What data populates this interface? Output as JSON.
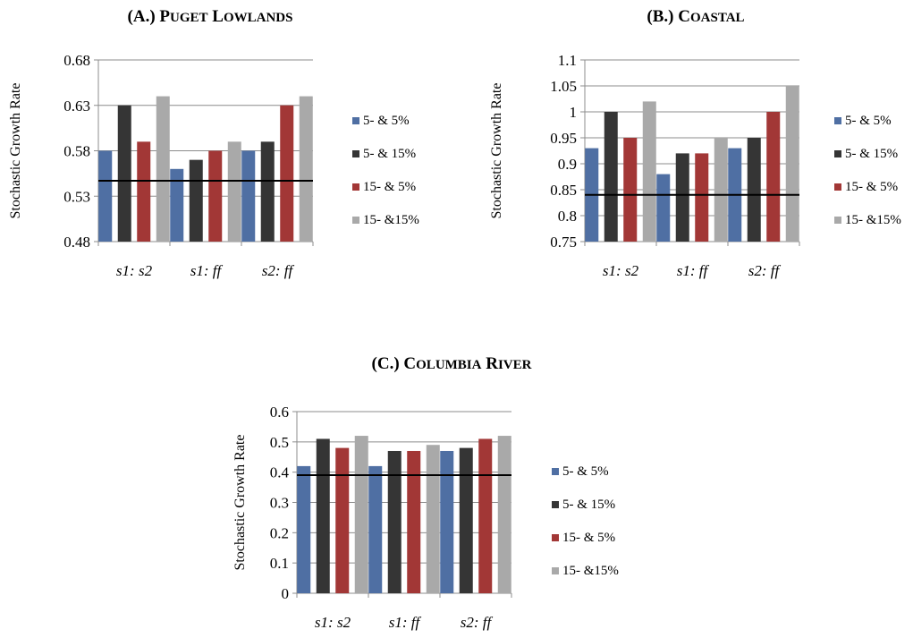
{
  "chart_data": [
    {
      "type": "bar",
      "title_prefix": "(A.)",
      "title_main": "Puget Lowlands",
      "ylabel": "Stochastic Growth Rate",
      "xlabel": "",
      "categories": [
        "s1: s2",
        "s1: ff",
        "s2: ff"
      ],
      "ylim": [
        0.48,
        0.68
      ],
      "yticks": [
        "0.48",
        "0.53",
        "0.58",
        "0.63",
        "0.68"
      ],
      "reference_line": 0.547,
      "series": [
        {
          "name": "5- & 5%",
          "color": "#4F6FA3",
          "values": [
            0.58,
            0.56,
            0.58
          ]
        },
        {
          "name": "5- & 15%",
          "color": "#353535",
          "values": [
            0.63,
            0.57,
            0.59
          ]
        },
        {
          "name": "15- & 5%",
          "color": "#A23736",
          "values": [
            0.59,
            0.58,
            0.63
          ]
        },
        {
          "name": "15- &15%",
          "color": "#A9A9A9",
          "values": [
            0.64,
            0.59,
            0.64
          ]
        }
      ]
    },
    {
      "type": "bar",
      "title_prefix": "(B.)",
      "title_main": "Coastal",
      "ylabel": "Stochastic Growth Rate",
      "xlabel": "",
      "categories": [
        "s1: s2",
        "s1: ff",
        "s2: ff"
      ],
      "ylim": [
        0.75,
        1.1
      ],
      "yticks": [
        "0.75",
        "0.8",
        "0.85",
        "0.9",
        "0.95",
        "1",
        "1.05",
        "1.1"
      ],
      "reference_line": 0.84,
      "series": [
        {
          "name": "5- & 5%",
          "color": "#4F6FA3",
          "values": [
            0.93,
            0.88,
            0.93
          ]
        },
        {
          "name": "5- & 15%",
          "color": "#353535",
          "values": [
            1.0,
            0.92,
            0.95
          ]
        },
        {
          "name": "15- & 5%",
          "color": "#A23736",
          "values": [
            0.95,
            0.92,
            1.0
          ]
        },
        {
          "name": "15- &15%",
          "color": "#A9A9A9",
          "values": [
            1.02,
            0.95,
            1.05
          ]
        }
      ]
    },
    {
      "type": "bar",
      "title_prefix": "(C.)",
      "title_main": "Columbia River",
      "ylabel": "Stochastic Growth Rate",
      "xlabel": "",
      "categories": [
        "s1: s2",
        "s1: ff",
        "s2: ff"
      ],
      "ylim": [
        0,
        0.6
      ],
      "yticks": [
        "0",
        "0.1",
        "0.2",
        "0.3",
        "0.4",
        "0.5",
        "0.6"
      ],
      "reference_line": 0.39,
      "series": [
        {
          "name": "5- & 5%",
          "color": "#4F6FA3",
          "values": [
            0.42,
            0.42,
            0.47
          ]
        },
        {
          "name": "5- & 15%",
          "color": "#353535",
          "values": [
            0.51,
            0.47,
            0.48
          ]
        },
        {
          "name": "15- & 5%",
          "color": "#A23736",
          "values": [
            0.48,
            0.47,
            0.51
          ]
        },
        {
          "name": "15- &15%",
          "color": "#A9A9A9",
          "values": [
            0.52,
            0.49,
            0.52
          ]
        }
      ]
    }
  ]
}
